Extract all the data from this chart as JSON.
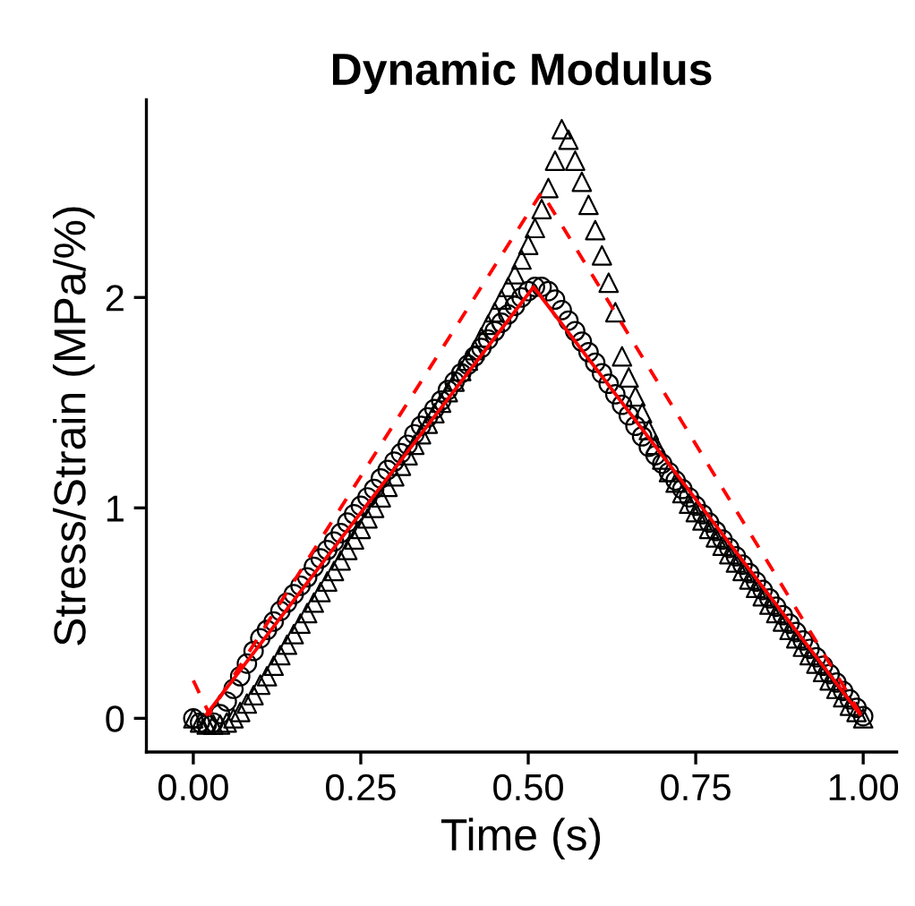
{
  "chart_data": {
    "type": "scatter",
    "title": "Dynamic Modulus",
    "xlabel": "Time (s)",
    "ylabel": "Stress/Strain (MPa/%)",
    "xlim": [
      -0.07,
      1.05
    ],
    "ylim": [
      -0.16,
      2.94
    ],
    "xticks": [
      {
        "value": 0,
        "label": "0.00"
      },
      {
        "value": 0.25,
        "label": "0.25"
      },
      {
        "value": 0.5,
        "label": "0.50"
      },
      {
        "value": 0.75,
        "label": "0.75"
      },
      {
        "value": 1,
        "label": "1.00"
      }
    ],
    "yticks": [
      0,
      1,
      2
    ],
    "grid": false,
    "legend": false,
    "x": [
      0.0,
      0.01,
      0.02,
      0.03,
      0.04,
      0.05,
      0.06,
      0.07,
      0.08,
      0.09,
      0.1,
      0.11,
      0.12,
      0.13,
      0.14,
      0.15,
      0.16,
      0.17,
      0.18,
      0.19,
      0.2,
      0.21,
      0.22,
      0.23,
      0.24,
      0.25,
      0.26,
      0.27,
      0.28,
      0.29,
      0.3,
      0.31,
      0.32,
      0.33,
      0.34,
      0.35,
      0.36,
      0.37,
      0.38,
      0.39,
      0.4,
      0.41,
      0.42,
      0.43,
      0.44,
      0.45,
      0.46,
      0.47,
      0.48,
      0.49,
      0.5,
      0.51,
      0.52,
      0.53,
      0.54,
      0.55,
      0.56,
      0.57,
      0.58,
      0.59,
      0.6,
      0.61,
      0.62,
      0.63,
      0.64,
      0.65,
      0.66,
      0.67,
      0.68,
      0.69,
      0.7,
      0.71,
      0.72,
      0.73,
      0.74,
      0.75,
      0.76,
      0.77,
      0.78,
      0.79,
      0.8,
      0.81,
      0.82,
      0.83,
      0.84,
      0.85,
      0.86,
      0.87,
      0.88,
      0.89,
      0.9,
      0.91,
      0.92,
      0.93,
      0.94,
      0.95,
      0.96,
      0.97,
      0.98,
      0.99,
      1.0
    ],
    "series": [
      {
        "marker": "circle",
        "color": "#000000",
        "values": [
          0.0,
          -0.02,
          -0.03,
          -0.02,
          0.02,
          0.08,
          0.14,
          0.2,
          0.26,
          0.32,
          0.38,
          0.42,
          0.46,
          0.51,
          0.55,
          0.59,
          0.63,
          0.67,
          0.72,
          0.76,
          0.8,
          0.84,
          0.88,
          0.93,
          0.97,
          1.01,
          1.05,
          1.09,
          1.14,
          1.18,
          1.22,
          1.26,
          1.3,
          1.35,
          1.39,
          1.43,
          1.47,
          1.51,
          1.56,
          1.6,
          1.64,
          1.68,
          1.72,
          1.76,
          1.8,
          1.84,
          1.88,
          1.92,
          1.96,
          2.0,
          2.03,
          2.05,
          2.05,
          2.03,
          1.99,
          1.94,
          1.89,
          1.84,
          1.79,
          1.74,
          1.69,
          1.64,
          1.59,
          1.54,
          1.49,
          1.44,
          1.39,
          1.34,
          1.29,
          1.25,
          1.21,
          1.17,
          1.13,
          1.09,
          1.05,
          1.01,
          0.97,
          0.93,
          0.89,
          0.85,
          0.81,
          0.77,
          0.73,
          0.69,
          0.65,
          0.61,
          0.57,
          0.53,
          0.49,
          0.45,
          0.41,
          0.37,
          0.33,
          0.29,
          0.25,
          0.21,
          0.17,
          0.13,
          0.09,
          0.05,
          0.01
        ]
      },
      {
        "marker": "triangle",
        "color": "#000000",
        "values": [
          0.0,
          -0.02,
          -0.03,
          -0.03,
          -0.03,
          -0.02,
          0.0,
          0.03,
          0.07,
          0.11,
          0.16,
          0.2,
          0.25,
          0.3,
          0.35,
          0.4,
          0.45,
          0.5,
          0.55,
          0.6,
          0.65,
          0.7,
          0.75,
          0.8,
          0.85,
          0.9,
          0.95,
          1.0,
          1.05,
          1.1,
          1.15,
          1.2,
          1.25,
          1.3,
          1.35,
          1.4,
          1.45,
          1.5,
          1.55,
          1.6,
          1.65,
          1.7,
          1.75,
          1.81,
          1.87,
          1.93,
          1.99,
          2.05,
          2.11,
          2.18,
          2.25,
          2.33,
          2.42,
          2.52,
          2.65,
          2.8,
          2.75,
          2.65,
          2.55,
          2.44,
          2.32,
          2.2,
          2.07,
          1.93,
          1.72,
          1.62,
          1.53,
          1.45,
          1.37,
          1.3,
          1.23,
          1.17,
          1.12,
          1.07,
          1.02,
          0.98,
          0.94,
          0.9,
          0.86,
          0.82,
          0.78,
          0.74,
          0.7,
          0.66,
          0.62,
          0.58,
          0.54,
          0.5,
          0.46,
          0.42,
          0.38,
          0.34,
          0.3,
          0.26,
          0.22,
          0.18,
          0.14,
          0.1,
          0.06,
          0.03,
          0.0
        ]
      },
      {
        "type": "line",
        "line_style": "dashed",
        "color": "#ff0000",
        "x": [
          0.0,
          0.024,
          0.52,
          1.0
        ],
        "values": [
          0.18,
          0.02,
          2.5,
          0.0
        ]
      },
      {
        "type": "line",
        "line_style": "solid",
        "color": "#ff0000",
        "x": [
          0.02,
          0.508,
          0.995
        ],
        "values": [
          0.02,
          2.05,
          0.02
        ]
      }
    ]
  }
}
